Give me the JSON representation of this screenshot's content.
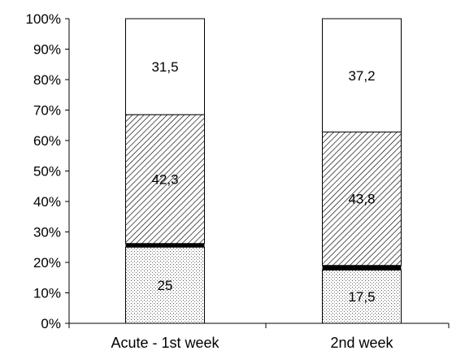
{
  "chart_data": {
    "type": "bar",
    "stacked": true,
    "normalized": true,
    "categories": [
      "Acute - 1st week",
      "2nd week"
    ],
    "series": [
      {
        "values": [
          25,
          17.5
        ],
        "labels": [
          "25",
          "17,5"
        ],
        "fill": "dots",
        "color": "#ffffff"
      },
      {
        "values": [
          1.2,
          1.5
        ],
        "labels": [
          "",
          ""
        ],
        "fill": "solid",
        "color": "#000000"
      },
      {
        "values": [
          42.3,
          43.8
        ],
        "labels": [
          "42,3",
          "43,8"
        ],
        "fill": "diagonal-hatch",
        "color": "#ffffff"
      },
      {
        "values": [
          31.5,
          37.2
        ],
        "labels": [
          "31,5",
          "37,2"
        ],
        "fill": "plain",
        "color": "#ffffff"
      }
    ],
    "ylim": [
      0,
      100
    ],
    "yticks": [
      "0%",
      "10%",
      "20%",
      "30%",
      "40%",
      "50%",
      "60%",
      "70%",
      "80%",
      "90%",
      "100%"
    ],
    "xlabel": "",
    "ylabel": "",
    "title": "",
    "legend": "none",
    "grid": false
  }
}
